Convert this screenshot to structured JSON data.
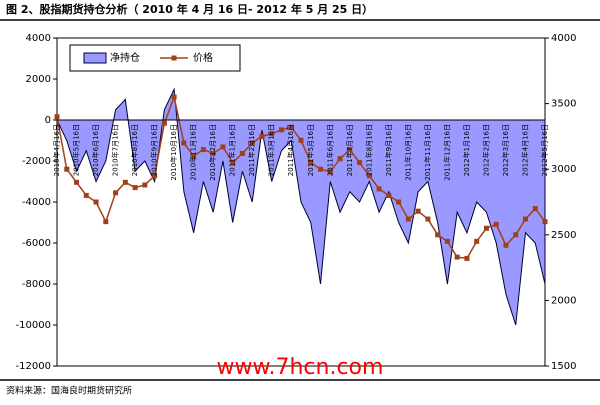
{
  "chart_data": {
    "type": "area-line",
    "title": "图 2、股指期货持仓分析（ 2010 年 4 月 16 日- 2012 年 5 月 25 日）",
    "source": "资料来源：国海良时期货研究所",
    "watermark": "www.7hcn.com",
    "categories": [
      "2010年4月16日",
      null,
      "2010年5月16日",
      null,
      "2010年6月16日",
      null,
      "2010年7月16日",
      null,
      "2010年8月16日",
      null,
      "2010年9月16日",
      null,
      "2010年10月16日",
      null,
      "2010年11月16日",
      null,
      "2010年12月16日",
      null,
      "2011年1月16日",
      null,
      "2011年2月16日",
      null,
      "2011年3月16日",
      null,
      "2011年4月16日",
      null,
      "2011年5月16日",
      null,
      "2011年6月16日",
      null,
      "2011年7月16日",
      null,
      "2011年8月16日",
      null,
      "2011年9月16日",
      null,
      "2011年10月16日",
      null,
      "2011年11月16日",
      null,
      "2011年12月16日",
      null,
      "2012年1月16日",
      null,
      "2012年2月16日",
      null,
      "2012年3月16日",
      null,
      "2012年4月16日",
      null,
      "2012年5月16日"
    ],
    "series": [
      {
        "name": "净持仓",
        "color": "#9999ff",
        "type": "area",
        "values": [
          0,
          -1000,
          -2500,
          -1500,
          -3000,
          -2000,
          500,
          1000,
          -2500,
          -2000,
          -3000,
          500,
          1500,
          -3500,
          -5500,
          -3000,
          -4500,
          -2000,
          -5000,
          -2500,
          -4000,
          -500,
          -3000,
          -1500,
          -1000,
          -4000,
          -5000,
          -8000,
          -3000,
          -4500,
          -3500,
          -4000,
          -3000,
          -4500,
          -3500,
          -5000,
          -6000,
          -3500,
          -3000,
          -5000,
          -8000,
          -4500,
          -5500,
          -4000,
          -4500,
          -6000,
          -8500,
          -10000,
          -5500,
          -6000,
          -8000
        ]
      },
      {
        "name": "价格",
        "color": "#a0401a",
        "type": "line",
        "axis": "y2",
        "values": [
          3400,
          3000,
          2900,
          2800,
          2750,
          2600,
          2820,
          2900,
          2860,
          2880,
          2950,
          3350,
          3550,
          3200,
          3100,
          3150,
          3120,
          3170,
          3050,
          3120,
          3200,
          3250,
          3270,
          3300,
          3320,
          3220,
          3050,
          3000,
          2980,
          3080,
          3150,
          3050,
          2950,
          2850,
          2800,
          2750,
          2620,
          2680,
          2620,
          2500,
          2450,
          2330,
          2320,
          2450,
          2550,
          2580,
          2420,
          2500,
          2620,
          2700,
          2600
        ]
      }
    ],
    "ylim": [
      -12000,
      4000
    ],
    "yticks": [
      -12000,
      -10000,
      -8000,
      -6000,
      -4000,
      -2000,
      0,
      2000,
      4000
    ],
    "y2lim": [
      1500,
      4000
    ],
    "y2ticks": [
      1500,
      2000,
      2500,
      3000,
      3500,
      4000
    ]
  }
}
